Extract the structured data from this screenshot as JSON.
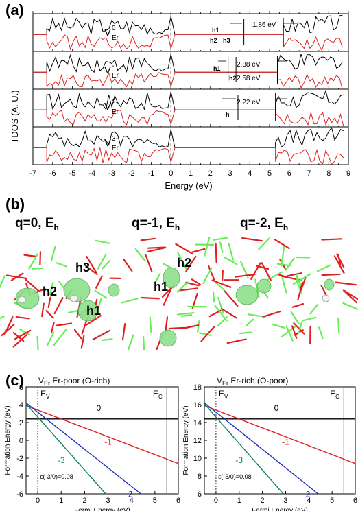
{
  "panel_a": {
    "tag": "(a)",
    "ylabel": "TDOS (A. U.)",
    "xlabel": "Energy (eV)",
    "xticks": [
      "-7",
      "-6",
      "-5",
      "-4",
      "-3",
      "-2",
      "-1",
      "0",
      "1",
      "2",
      "3",
      "4",
      "5",
      "6",
      "7",
      "8",
      "9"
    ],
    "rows": [
      {
        "species_base": "V",
        "sup": "0",
        "sub": "Er",
        "gap": "1.86 eV",
        "defect_labels": [
          "h1",
          "h2",
          "h3"
        ]
      },
      {
        "species_base": "V",
        "sup": "-",
        "sub": "Er",
        "gap": "2.88 eV",
        "gap2": "2.58 eV",
        "defect_labels": [
          "h1",
          "h2"
        ]
      },
      {
        "species_base": "V",
        "sup": "2-",
        "sub": "Er",
        "gap": "2.22 eV",
        "defect_labels": [
          "h"
        ]
      },
      {
        "species_base": "V",
        "sup": "3-",
        "sub": "Er",
        "gap": "",
        "defect_labels": []
      }
    ],
    "colors": {
      "up": "#000000",
      "down": "#e02020"
    }
  },
  "panel_b": {
    "tag": "(b)",
    "structures": [
      {
        "q": "q=0, E",
        "sub": "h",
        "holes": [
          "h3",
          "h2",
          "h1"
        ]
      },
      {
        "q": "q=-1, E",
        "sub": "h",
        "holes": [
          "h2",
          "h1"
        ]
      },
      {
        "q": "q=-2, E",
        "sub": "h",
        "holes": []
      }
    ],
    "colors": {
      "bond_o": "#e02020",
      "bond_er": "#66ee55",
      "iso": "#8ce28c"
    }
  },
  "panel_c": {
    "tag": "(c)",
    "charts": [
      {
        "title_base": "V",
        "title_sub": "Er",
        "title_rest": " Er-poor (O-rich)",
        "ylabel": "Formation Energy (eV)",
        "xlabel": "Fermi Energy (eV)",
        "yticks": [
          "-6",
          "-4",
          "-2",
          "0",
          "2",
          "4",
          "6"
        ],
        "xticks": [
          "0",
          "1",
          "2",
          "3",
          "4",
          "5",
          "6"
        ],
        "ev_label": "E",
        "ev_sub": "V",
        "ec_label": "E",
        "ec_sub": "C",
        "annotation": "ε(-3/0)=0.08"
      },
      {
        "title_base": "V",
        "title_sub": "Er",
        "title_rest": " Er-rich (O-poor)",
        "ylabel": "Formation Energy (eV)",
        "xlabel": "Fermi Energy (eV)",
        "yticks": [
          "6",
          "8",
          "10",
          "12",
          "14",
          "16",
          "18"
        ],
        "xticks": [
          "0",
          "1",
          "2",
          "3",
          "4",
          "5",
          "6"
        ],
        "ev_label": "E",
        "ev_sub": "V",
        "ec_label": "E",
        "ec_sub": "C",
        "annotation": "ε(-3/0)=0.08"
      }
    ]
  },
  "chart_data": [
    {
      "type": "line",
      "title": "V_Er Er-poor (O-rich)",
      "xlabel": "Fermi Energy (eV)",
      "ylabel": "Formation Energy (eV)",
      "xlim": [
        -0.5,
        6
      ],
      "ylim": [
        -6,
        6
      ],
      "series": [
        {
          "name": "0",
          "color": "#000000",
          "x": [
            -0.5,
            6
          ],
          "y": [
            2.4,
            2.4
          ]
        },
        {
          "name": "-1",
          "color": "#e02020",
          "x": [
            -0.5,
            6
          ],
          "y": [
            3.9,
            -2.6
          ]
        },
        {
          "name": "-2",
          "color": "#2030c0",
          "x": [
            -0.5,
            4.4
          ],
          "y": [
            4.2,
            -6.0
          ]
        },
        {
          "name": "-3",
          "color": "#108060",
          "x": [
            -0.5,
            2.9
          ],
          "y": [
            4.1,
            -6.0
          ]
        }
      ],
      "vlines": [
        {
          "label": "EV",
          "x": 0
        },
        {
          "label": "EC",
          "x": 5.5
        }
      ],
      "annotation": "ε(-3/0)=0.08"
    },
    {
      "type": "line",
      "title": "V_Er Er-rich (O-poor)",
      "xlabel": "Fermi Energy (eV)",
      "ylabel": "Formation Energy (eV)",
      "xlim": [
        -0.5,
        6
      ],
      "ylim": [
        6,
        18
      ],
      "series": [
        {
          "name": "0",
          "color": "#000000",
          "x": [
            -0.5,
            6
          ],
          "y": [
            14.4,
            14.4
          ]
        },
        {
          "name": "-1",
          "color": "#e02020",
          "x": [
            -0.5,
            6
          ],
          "y": [
            15.9,
            9.4
          ]
        },
        {
          "name": "-2",
          "color": "#2030c0",
          "x": [
            -0.5,
            4.4
          ],
          "y": [
            16.2,
            6.0
          ]
        },
        {
          "name": "-3",
          "color": "#108060",
          "x": [
            -0.5,
            2.9
          ],
          "y": [
            16.1,
            6.0
          ]
        }
      ],
      "vlines": [
        {
          "label": "EV",
          "x": 0
        },
        {
          "label": "EC",
          "x": 5.5
        }
      ],
      "annotation": "ε(-3/0)=0.08"
    }
  ]
}
